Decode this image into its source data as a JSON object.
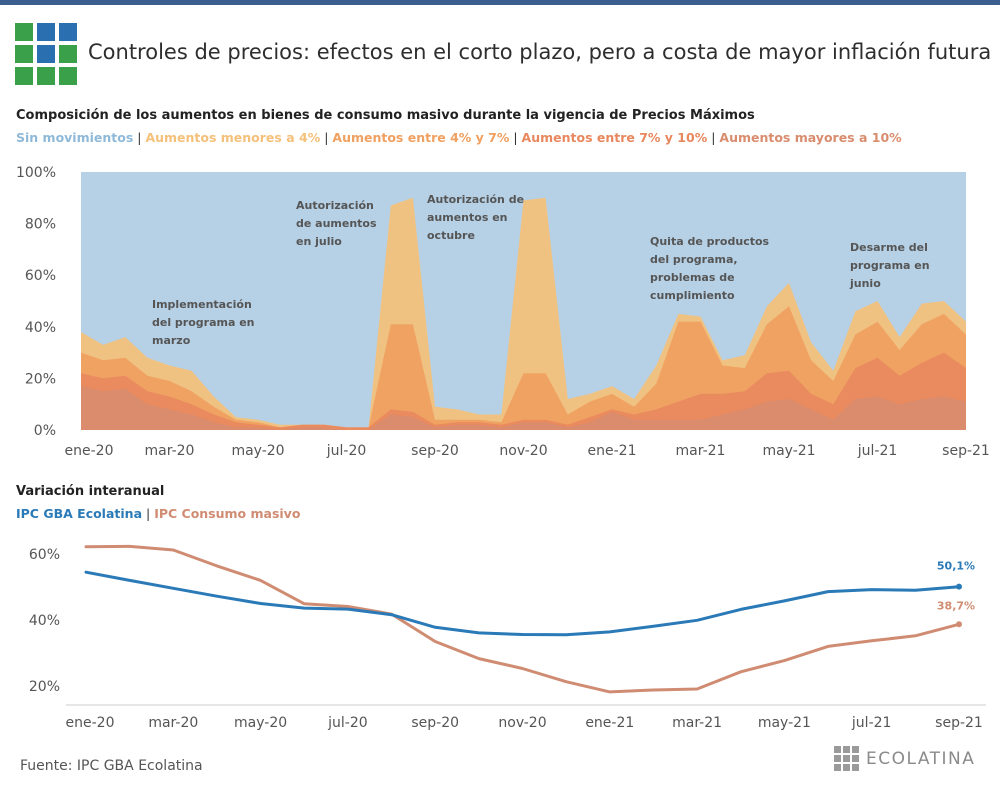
{
  "header": {
    "title": "Controles de precios: efectos en el corto plazo, pero a costa de mayor inflación futura",
    "logo_colors": {
      "green": "#3aa14a",
      "blue": "#2a6fb0"
    }
  },
  "chart1": {
    "subtitle": "Composición de los aumentos en bienes de consumo masivo durante la vigencia de Precios Máximos",
    "legend": [
      {
        "label": "Sin movimientos",
        "color": "#8fb9d8"
      },
      {
        "label": "Aumentos menores a 4%",
        "color": "#f5c07a"
      },
      {
        "label": "Aumentos entre 4% y 7%",
        "color": "#f0a060"
      },
      {
        "label": "Aumentos entre 7% y 10%",
        "color": "#e8885e"
      },
      {
        "label": "Aumentos mayores a 10%",
        "color": "#d98c6e"
      }
    ],
    "y_ticks": [
      "100%",
      "80%",
      "60%",
      "40%",
      "20%",
      "0%"
    ],
    "x_ticks": [
      "ene-20",
      "mar-20",
      "may-20",
      "jul-20",
      "sep-20",
      "nov-20",
      "ene-21",
      "mar-21",
      "may-21",
      "jul-21",
      "sep-21"
    ],
    "annotations": [
      {
        "lines": [
          "Implementación",
          "del programa en",
          "marzo"
        ]
      },
      {
        "lines": [
          "Autorización",
          "de aumentos",
          "en julio"
        ]
      },
      {
        "lines": [
          "Autorización de",
          "aumentos en",
          "octubre"
        ]
      },
      {
        "lines": [
          "Quita de productos",
          "del programa,",
          "problemas de",
          "cumplimiento"
        ]
      },
      {
        "lines": [
          "Desarme del",
          "programa en",
          "junio"
        ]
      }
    ]
  },
  "chart2": {
    "subtitle": "Variación interanual",
    "legend": [
      {
        "label": "IPC GBA Ecolatina",
        "color": "#2a7ab8"
      },
      {
        "label": "IPC Consumo masivo",
        "color": "#d08c72"
      }
    ],
    "y_ticks": [
      "60%",
      "40%",
      "20%"
    ],
    "x_ticks": [
      "ene-20",
      "mar-20",
      "may-20",
      "jul-20",
      "sep-20",
      "nov-20",
      "ene-21",
      "mar-21",
      "may-21",
      "jul-21",
      "sep-21"
    ],
    "end_labels": [
      "50,1%",
      "38,7%"
    ]
  },
  "chart_data": [
    {
      "type": "area",
      "title": "Composición de los aumentos en bienes de consumo masivo durante la vigencia de Precios Máximos",
      "stacked": true,
      "x_unit": "half-month",
      "x_range": [
        "ene-20",
        "sep-21"
      ],
      "ylim": [
        0,
        100
      ],
      "series": [
        {
          "name": "Aumentos mayores a 10%",
          "values": [
            17,
            15,
            16,
            10,
            8,
            6,
            3,
            1,
            1,
            0,
            1,
            1,
            0,
            0,
            6,
            5,
            1,
            2,
            2,
            1,
            3,
            3,
            1,
            3,
            7,
            4,
            4,
            4,
            4,
            6,
            8,
            11,
            12,
            8,
            4,
            12,
            13,
            10,
            12,
            13,
            11
          ]
        },
        {
          "name": "Aumentos entre 7% y 10%",
          "values": [
            5,
            5,
            5,
            5,
            5,
            4,
            3,
            2,
            1,
            1,
            1,
            1,
            1,
            1,
            2,
            2,
            1,
            1,
            1,
            1,
            1,
            1,
            1,
            2,
            1,
            2,
            4,
            7,
            10,
            8,
            7,
            11,
            11,
            6,
            6,
            12,
            15,
            11,
            14,
            17,
            13
          ]
        },
        {
          "name": "Aumentos entre 4% y 7%",
          "values": [
            8,
            7,
            7,
            6,
            6,
            5,
            3,
            1,
            1,
            0,
            0,
            0,
            0,
            0,
            33,
            34,
            2,
            1,
            1,
            1,
            18,
            18,
            4,
            6,
            6,
            3,
            10,
            31,
            28,
            11,
            9,
            19,
            25,
            13,
            9,
            13,
            14,
            10,
            15,
            15,
            13
          ]
        },
        {
          "name": "Aumentos menores a 4%",
          "values": [
            8,
            6,
            8,
            7,
            6,
            8,
            4,
            1,
            1,
            1,
            0,
            0,
            0,
            0,
            46,
            49,
            5,
            4,
            2,
            3,
            67,
            68,
            6,
            3,
            3,
            3,
            7,
            3,
            2,
            2,
            5,
            7,
            9,
            7,
            4,
            9,
            8,
            5,
            8,
            5,
            5
          ]
        },
        {
          "name": "Sin movimientos",
          "values": [
            62,
            67,
            64,
            72,
            75,
            77,
            87,
            95,
            96,
            98,
            98,
            98,
            99,
            99,
            13,
            10,
            91,
            92,
            94,
            94,
            11,
            10,
            88,
            86,
            83,
            88,
            75,
            55,
            56,
            73,
            71,
            51,
            43,
            66,
            77,
            54,
            50,
            64,
            51,
            50,
            58
          ]
        }
      ]
    },
    {
      "type": "line",
      "title": "Variación interanual",
      "x": [
        "ene-20",
        "feb-20",
        "mar-20",
        "abr-20",
        "may-20",
        "jun-20",
        "jul-20",
        "ago-20",
        "sep-20",
        "oct-20",
        "nov-20",
        "dic-20",
        "ene-21",
        "feb-21",
        "mar-21",
        "abr-21",
        "may-21",
        "jun-21",
        "jul-21",
        "ago-21",
        "sep-21"
      ],
      "ylim": [
        15,
        65
      ],
      "series": [
        {
          "name": "IPC GBA Ecolatina",
          "values": [
            54.5,
            52.0,
            49.6,
            47.2,
            45.0,
            43.6,
            43.3,
            41.6,
            37.8,
            36.1,
            35.6,
            35.5,
            36.4,
            38.1,
            39.9,
            43.2,
            45.8,
            48.6,
            49.2,
            49.0,
            50.1
          ]
        },
        {
          "name": "IPC Consumo masivo",
          "values": [
            62.2,
            62.3,
            61.2,
            56.4,
            52.0,
            44.9,
            44.1,
            41.8,
            33.5,
            28.3,
            25.3,
            21.3,
            18.2,
            18.8,
            19.1,
            24.3,
            27.7,
            32.0,
            33.7,
            35.2,
            38.7
          ]
        }
      ]
    }
  ]
}
